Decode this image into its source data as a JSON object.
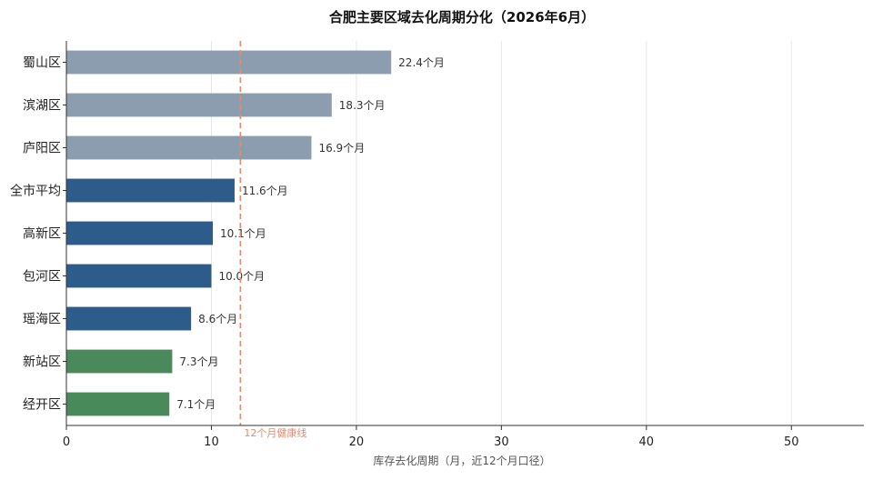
{
  "chart_data": {
    "type": "bar",
    "orientation": "horizontal",
    "title": "合肥主要区域去化周期分化（2026年6月）",
    "xlabel": "库存去化周期（月，近12个月口径）",
    "ylabel": "",
    "xlim": [
      0,
      55
    ],
    "xticks": [
      0,
      10,
      20,
      30,
      40,
      50
    ],
    "grid": "vertical",
    "value_suffix": "个月",
    "categories": [
      "蜀山区",
      "滨湖区",
      "庐阳区",
      "全市平均",
      "高新区",
      "包河区",
      "瑶海区",
      "新站区",
      "经开区"
    ],
    "values": [
      22.4,
      18.3,
      16.9,
      11.6,
      10.1,
      10.0,
      8.6,
      7.3,
      7.1
    ],
    "bar_colors": [
      "#8c9db0",
      "#8c9db0",
      "#8c9db0",
      "#2d5b8a",
      "#2d5b8a",
      "#2d5b8a",
      "#2d5b8a",
      "#4a8a5a",
      "#4a8a5a"
    ],
    "reference_line": {
      "value": 12,
      "label": "12个月健康线",
      "color": "#e8896a"
    }
  }
}
